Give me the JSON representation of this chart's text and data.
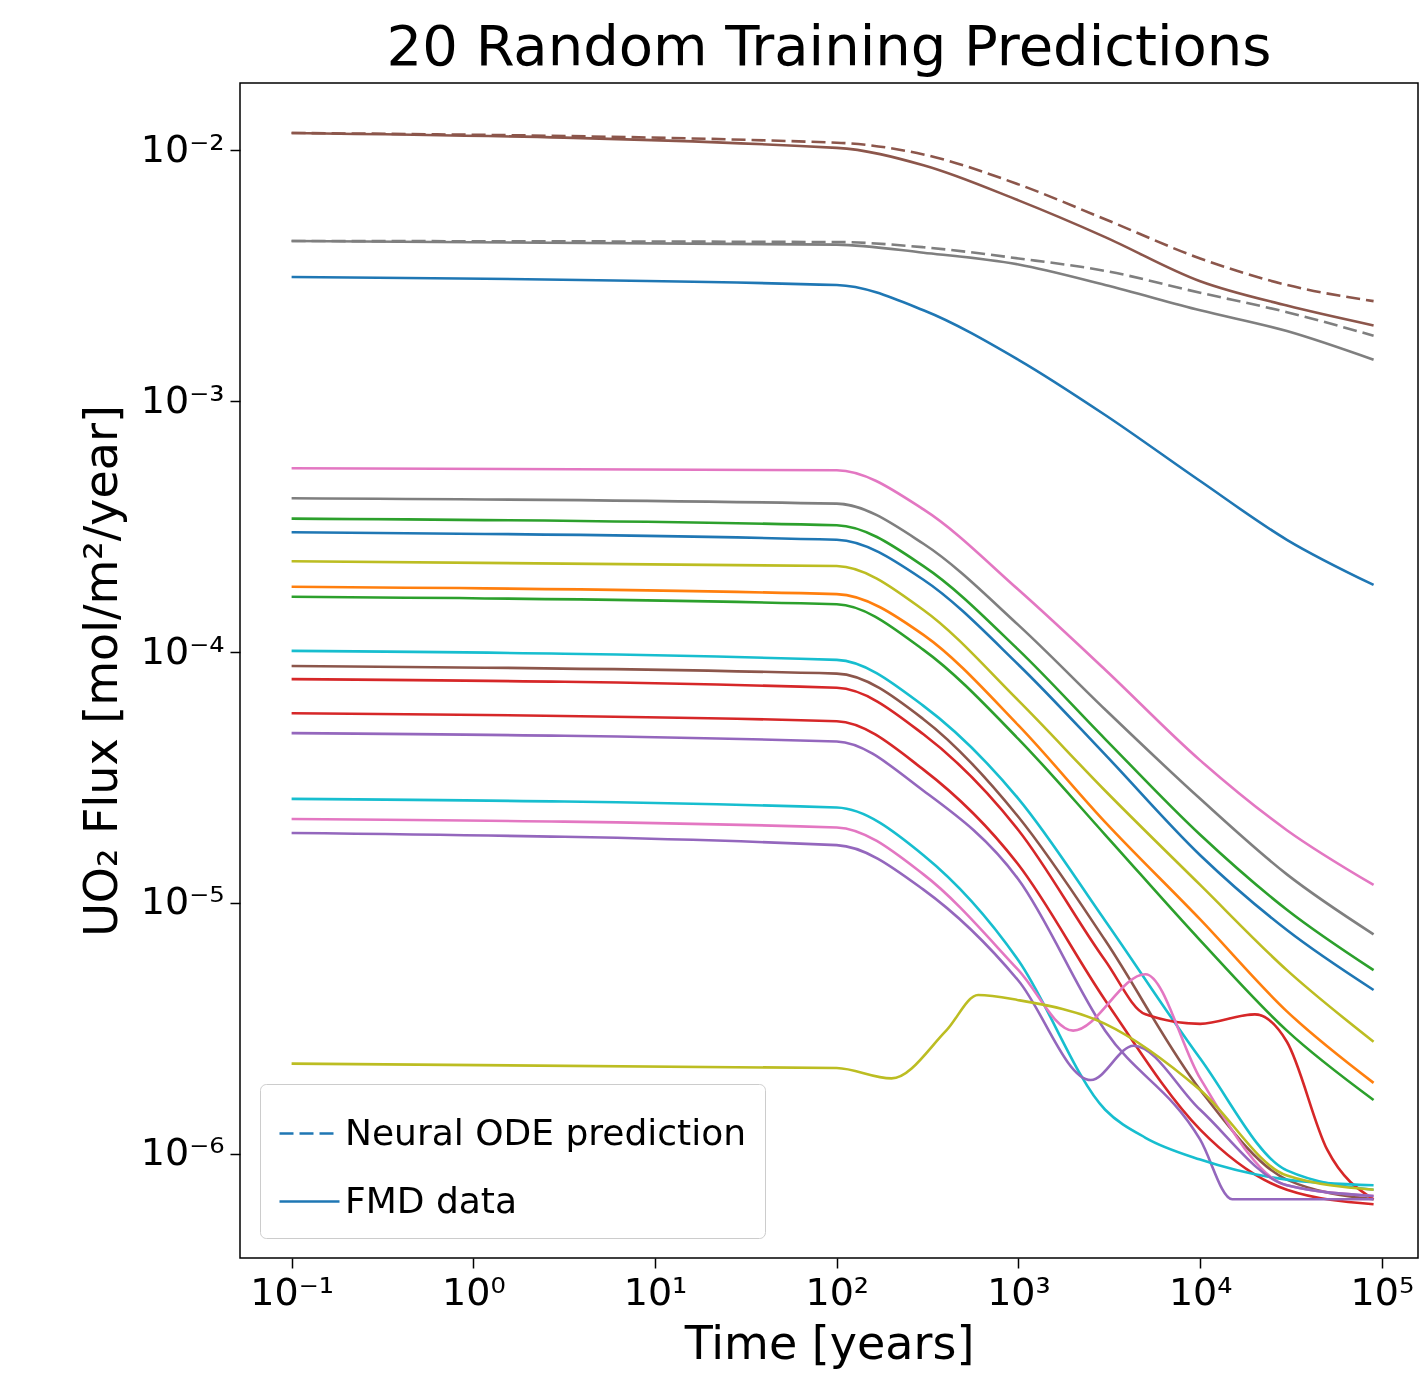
{
  "chart_data": {
    "type": "line",
    "title": "20 Random Training Predictions",
    "xlabel": "Time [years]",
    "ylabel": "UO₂ Flux [mol/m²/year]",
    "log": "xy",
    "grid": false,
    "legend": "bottom left",
    "marker": "none",
    "xlim": [
      0.052,
      158000
    ],
    "ylim": [
      3.85e-07,
      0.0185
    ],
    "xticks": [
      {
        "value": 0.1,
        "label": "10⁻¹"
      },
      {
        "value": 1,
        "label": "10⁰"
      },
      {
        "value": 10,
        "label": "10¹"
      },
      {
        "value": 100,
        "label": "10²"
      },
      {
        "value": 1000,
        "label": "10³"
      },
      {
        "value": 10000,
        "label": "10⁴"
      },
      {
        "value": 100000,
        "label": "10⁵"
      }
    ],
    "yticks": [
      {
        "value": 1e-06,
        "label": "10⁻⁶"
      },
      {
        "value": 1e-05,
        "label": "10⁻⁵"
      },
      {
        "value": 0.0001,
        "label": "10⁻⁴"
      },
      {
        "value": 0.001,
        "label": "10⁻³"
      },
      {
        "value": 0.01,
        "label": "10⁻²"
      }
    ],
    "series": [
      {
        "name": "Neural ODE prediction",
        "color": "#1f77b4",
        "line_style": "dashed",
        "values": [
          null
        ]
      },
      {
        "color": "#8c564b",
        "line_style": "dashed",
        "x": [
          0.1,
          100,
          300,
          1000,
          3000,
          10000,
          30000,
          90000
        ],
        "values": [
          0.0117,
          0.0107,
          0.0096,
          0.0073,
          0.0053,
          0.0037,
          0.0029,
          0.0025
        ]
      },
      {
        "color": "#7f7f7f",
        "line_style": "dashed",
        "x": [
          0.1,
          100,
          300,
          1000,
          3000,
          10000,
          30000,
          90000
        ],
        "values": [
          0.00434,
          0.0043,
          0.0041,
          0.0037,
          0.0033,
          0.0027,
          0.00226,
          0.00182
        ]
      },
      {
        "name": "FMD data",
        "color": "#1f77b4",
        "line_style": "solid",
        "x": [
          0.1,
          100,
          300,
          1000,
          3000,
          10000,
          30000,
          90000
        ],
        "values": [
          0.00312,
          0.0029,
          0.0023,
          0.00146,
          0.00088,
          0.00048,
          0.00028,
          0.000185
        ]
      },
      {
        "color": "#8c564b",
        "line_style": "solid",
        "x": [
          0.1,
          100,
          300,
          1000,
          3000,
          10000,
          30000,
          90000
        ],
        "values": [
          0.0117,
          0.0102,
          0.0087,
          0.0063,
          0.0045,
          0.003,
          0.0024,
          0.002
        ]
      },
      {
        "color": "#7f7f7f",
        "line_style": "solid",
        "x": [
          0.1,
          100,
          300,
          1000,
          3000,
          10000,
          30000,
          90000
        ],
        "values": [
          0.00434,
          0.0042,
          0.0039,
          0.0035,
          0.0029,
          0.0023,
          0.0019,
          0.00146
        ]
      },
      {
        "color": "#e377c2",
        "line_style": "solid",
        "x": [
          0.1,
          100,
          300,
          1000,
          3000,
          10000,
          30000,
          90000
        ],
        "values": [
          0.00054,
          0.00053,
          0.00037,
          0.000177,
          8.5e-05,
          3.7e-05,
          1.95e-05,
          1.18e-05
        ]
      },
      {
        "color": "#7f7f7f",
        "line_style": "solid",
        "x": [
          0.1,
          100,
          300,
          1000,
          3000,
          10000,
          30000,
          90000
        ],
        "values": [
          0.00041,
          0.00039,
          0.00027,
          0.000128,
          5.9e-05,
          2.6e-05,
          1.3e-05,
          7.5e-06
        ]
      },
      {
        "color": "#2ca02c",
        "line_style": "solid",
        "x": [
          0.1,
          100,
          300,
          1000,
          3000,
          10000,
          30000,
          90000
        ],
        "values": [
          0.00034,
          0.00032,
          0.00022,
          0.000102,
          4.5e-05,
          1.87e-05,
          9.4e-06,
          5.4e-06
        ]
      },
      {
        "color": "#1f77b4",
        "line_style": "solid",
        "x": [
          0.1,
          100,
          300,
          1000,
          3000,
          10000,
          30000,
          90000
        ],
        "values": [
          0.0003,
          0.00028,
          0.000194,
          8.9e-05,
          3.9e-05,
          1.55e-05,
          7.8e-06,
          4.5e-06
        ]
      },
      {
        "color": "#bcbd22",
        "line_style": "solid",
        "x": [
          0.1,
          100,
          300,
          1000,
          3000,
          10000,
          30000,
          90000
        ],
        "values": [
          0.00023,
          0.00022,
          0.000147,
          6.4e-05,
          2.8e-05,
          1.18e-05,
          5.4e-06,
          2.8e-06
        ]
      },
      {
        "color": "#ff7f0e",
        "line_style": "solid",
        "x": [
          0.1,
          100,
          300,
          1000,
          3000,
          10000,
          30000,
          90000
        ],
        "values": [
          0.000182,
          0.00017,
          0.000117,
          5.1e-05,
          2.1e-05,
          8.6e-06,
          3.7e-06,
          1.92e-06
        ]
      },
      {
        "color": "#2ca02c",
        "line_style": "solid",
        "x": [
          0.1,
          100,
          300,
          1000,
          3000,
          10000,
          30000,
          90000
        ],
        "values": [
          0.000166,
          0.000155,
          0.000102,
          4.5e-05,
          1.87e-05,
          7.1e-06,
          3.1e-06,
          1.64e-06
        ]
      },
      {
        "color": "#17becf",
        "line_style": "solid",
        "x": [
          0.1,
          100,
          300,
          1000,
          3000,
          10000,
          30000,
          90000
        ],
        "values": [
          0.000101,
          9.3e-05,
          6.1e-05,
          2.6e-05,
          8.5e-06,
          2.4e-06,
          8.6e-07,
          7.2e-07
        ]
      },
      {
        "color": "#8c564b",
        "line_style": "solid",
        "x": [
          0.1,
          100,
          300,
          1000,
          3000,
          10000,
          30000,
          90000
        ],
        "values": [
          8.8e-05,
          8.2e-05,
          5.4e-05,
          2.2e-05,
          7.1e-06,
          1.8e-06,
          7.9e-07,
          6.6e-07
        ]
      },
      {
        "color": "#d62728",
        "line_style": "solid",
        "x": [
          0.1,
          100,
          300,
          1000,
          3000,
          5000,
          10000,
          20000,
          30000,
          50000,
          90000
        ],
        "values": [
          7.8e-05,
          7.2e-05,
          4.7e-05,
          1.95e-05,
          5.9e-06,
          3.6e-06,
          3.3e-06,
          3.6e-06,
          2.8e-06,
          1.04e-06,
          6.6e-07
        ]
      },
      {
        "color": "#d62728",
        "line_style": "solid",
        "x": [
          0.1,
          100,
          300,
          1000,
          3000,
          10000,
          30000,
          90000
        ],
        "values": [
          5.7e-05,
          5.3e-05,
          3.4e-05,
          1.42e-05,
          4.1e-06,
          1.25e-06,
          7.2e-07,
          6.3e-07
        ]
      },
      {
        "color": "#9467bd",
        "line_style": "solid",
        "x": [
          0.1,
          100,
          300,
          1000,
          3000,
          10000,
          15000,
          90000
        ],
        "values": [
          4.75e-05,
          4.4e-05,
          2.8e-05,
          1.24e-05,
          3.1e-06,
          1.14e-06,
          6.6e-07,
          6.6e-07
        ]
      },
      {
        "color": "#17becf",
        "line_style": "solid",
        "x": [
          0.1,
          100,
          300,
          1000,
          3000,
          5000,
          10000,
          30000,
          90000
        ],
        "values": [
          2.6e-05,
          2.4e-05,
          1.55e-05,
          5.9e-06,
          1.5e-06,
          1.16e-06,
          9.5e-07,
          7.9e-07,
          7.5e-07
        ]
      },
      {
        "color": "#e377c2",
        "line_style": "solid",
        "x": [
          0.1,
          100,
          300,
          1000,
          2000,
          5000,
          10000,
          30000,
          90000
        ],
        "values": [
          2.16e-05,
          2e-05,
          1.3e-05,
          5.4e-06,
          3.1e-06,
          5.2e-06,
          2e-06,
          7.5e-07,
          6.8e-07
        ]
      },
      {
        "color": "#9467bd",
        "line_style": "solid",
        "x": [
          0.1,
          100,
          300,
          1000,
          2500,
          4300,
          10000,
          30000,
          90000
        ],
        "values": [
          1.9e-05,
          1.7e-05,
          1.13e-05,
          4.9e-06,
          1.97e-06,
          2.7e-06,
          1.5e-06,
          7.5e-07,
          6.8e-07
        ]
      },
      {
        "color": "#bcbd22",
        "line_style": "solid",
        "x": [
          0.1,
          100,
          200,
          400,
          600,
          1000,
          3000,
          10000,
          30000,
          90000
        ],
        "values": [
          2.29e-06,
          2.2e-06,
          2e-06,
          3.1e-06,
          4.3e-06,
          4.1e-06,
          3.3e-06,
          1.8e-06,
          8.2e-07,
          7.2e-07
        ]
      }
    ]
  }
}
